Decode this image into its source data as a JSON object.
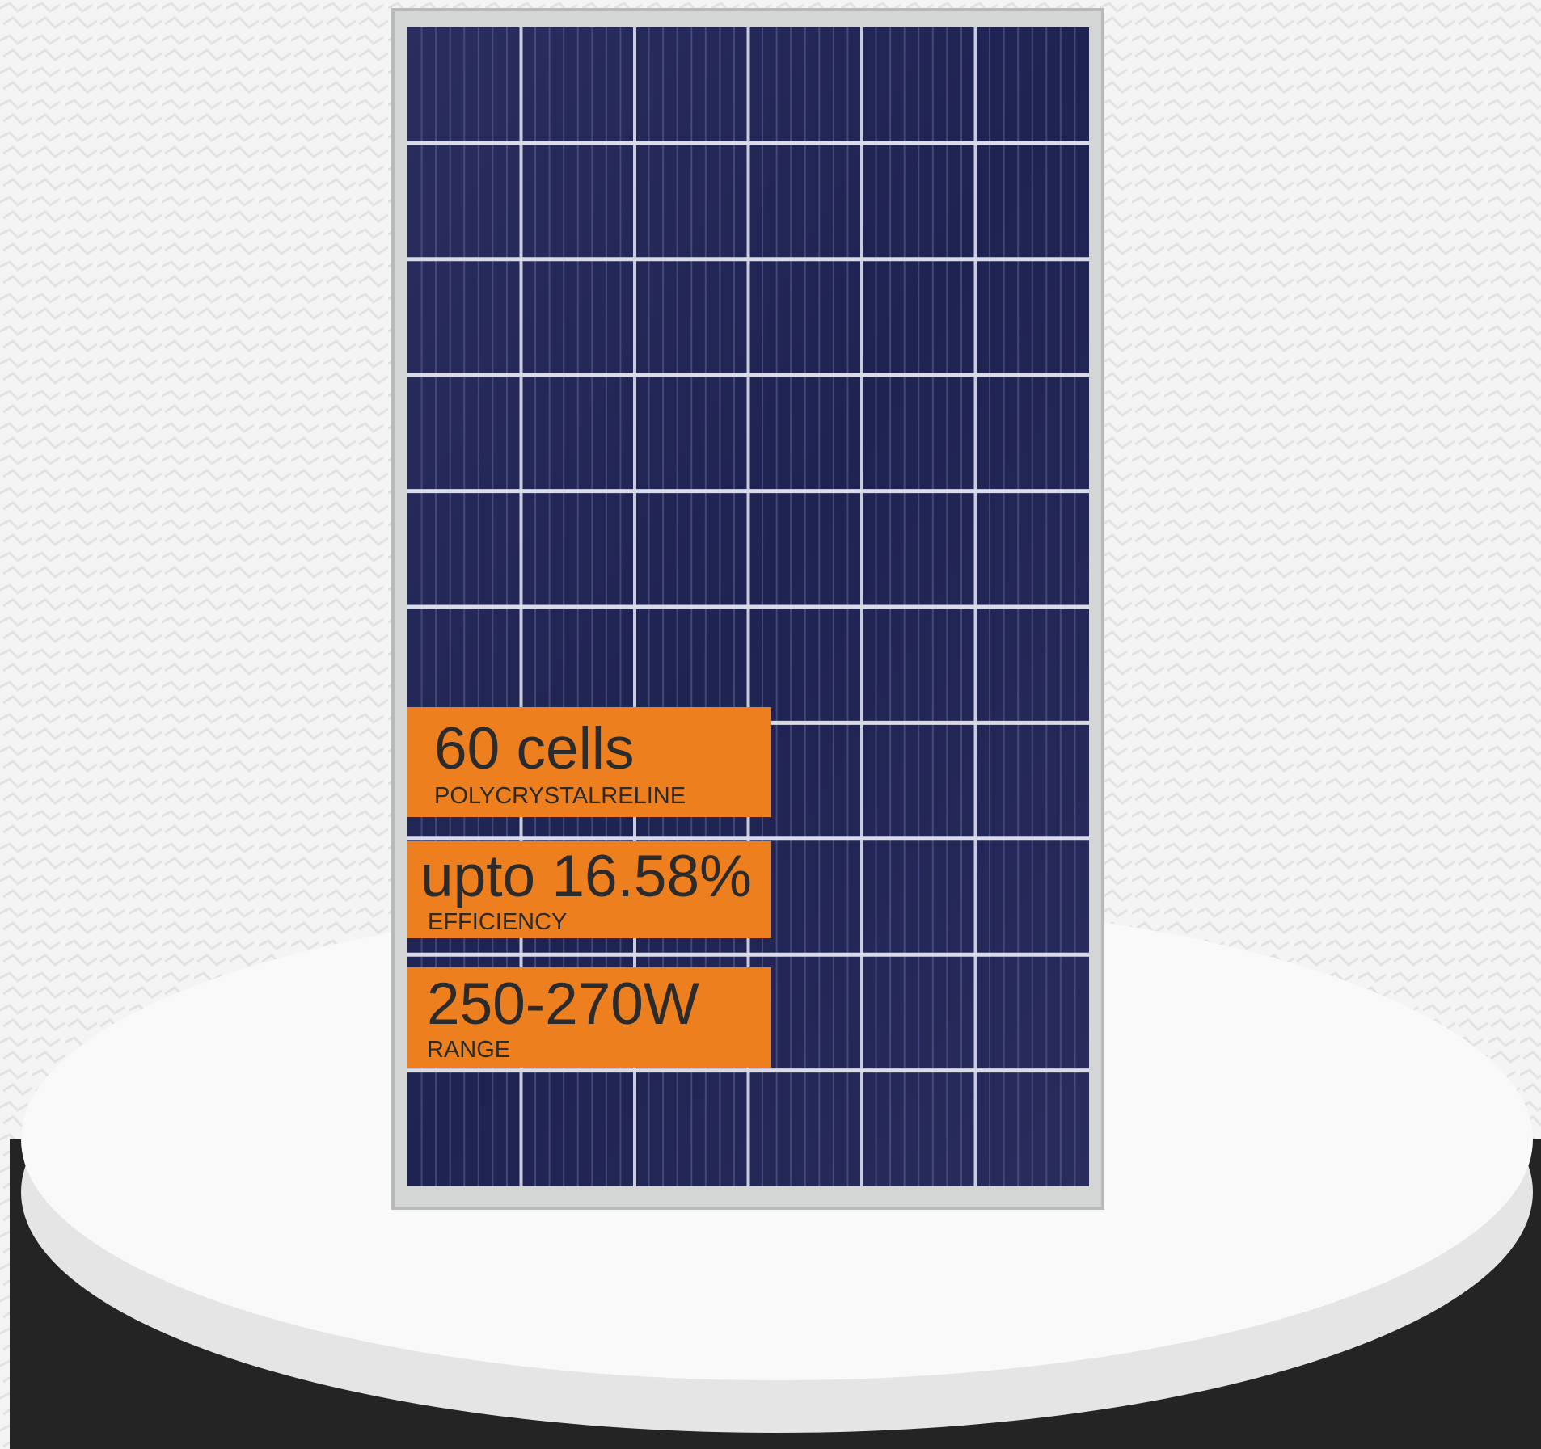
{
  "badges": [
    {
      "title": "60 cells",
      "subtitle": "POLYCRYSTALRELINE"
    },
    {
      "title": "upto 16.58%",
      "subtitle": "EFFICIENCY"
    },
    {
      "title": "250-270W",
      "subtitle": "RANGE"
    }
  ]
}
